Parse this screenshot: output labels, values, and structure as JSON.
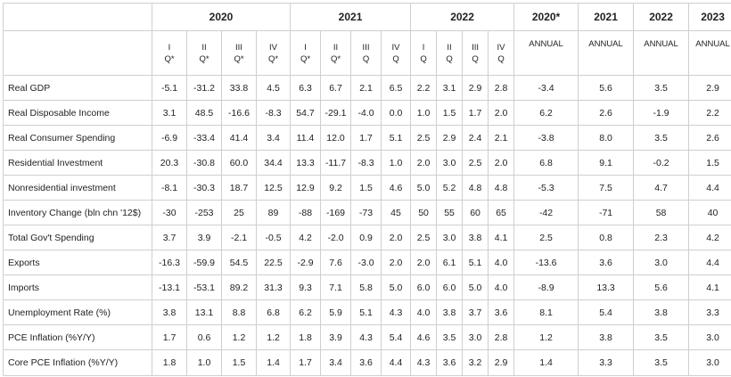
{
  "years": [
    "2020",
    "2021",
    "2022",
    "2020*",
    "2021",
    "2022",
    "2023"
  ],
  "year_spans": [
    4,
    4,
    4,
    1,
    1,
    1,
    1
  ],
  "quarter_headers": [
    {
      "roman": "I",
      "suffix": "Q*"
    },
    {
      "roman": "II",
      "suffix": "Q*"
    },
    {
      "roman": "III",
      "suffix": "Q*"
    },
    {
      "roman": "IV",
      "suffix": "Q*"
    },
    {
      "roman": "I",
      "suffix": "Q*"
    },
    {
      "roman": "II",
      "suffix": "Q*"
    },
    {
      "roman": "III",
      "suffix": "Q"
    },
    {
      "roman": "IV",
      "suffix": "Q"
    },
    {
      "roman": "I",
      "suffix": "Q"
    },
    {
      "roman": "II",
      "suffix": "Q"
    },
    {
      "roman": "III",
      "suffix": "Q"
    },
    {
      "roman": "IV",
      "suffix": "Q"
    }
  ],
  "annual_label": "ANNUAL",
  "rows": [
    {
      "label": "Real GDP",
      "values": [
        "-5.1",
        "-31.2",
        "33.8",
        "4.5",
        "6.3",
        "6.7",
        "2.1",
        "6.5",
        "2.2",
        "3.1",
        "2.9",
        "2.8",
        "-3.4",
        "5.6",
        "3.5",
        "2.9"
      ]
    },
    {
      "label": "Real Disposable Income",
      "values": [
        "3.1",
        "48.5",
        "-16.6",
        "-8.3",
        "54.7",
        "-29.1",
        "-4.0",
        "0.0",
        "1.0",
        "1.5",
        "1.7",
        "2.0",
        "6.2",
        "2.6",
        "-1.9",
        "2.2"
      ]
    },
    {
      "label": "Real Consumer Spending",
      "values": [
        "-6.9",
        "-33.4",
        "41.4",
        "3.4",
        "11.4",
        "12.0",
        "1.7",
        "5.1",
        "2.5",
        "2.9",
        "2.4",
        "2.1",
        "-3.8",
        "8.0",
        "3.5",
        "2.6"
      ]
    },
    {
      "label": "Residential Investment",
      "values": [
        "20.3",
        "-30.8",
        "60.0",
        "34.4",
        "13.3",
        "-11.7",
        "-8.3",
        "1.0",
        "2.0",
        "3.0",
        "2.5",
        "2.0",
        "6.8",
        "9.1",
        "-0.2",
        "1.5"
      ]
    },
    {
      "label": "Nonresidential investment",
      "values": [
        "-8.1",
        "-30.3",
        "18.7",
        "12.5",
        "12.9",
        "9.2",
        "1.5",
        "4.6",
        "5.0",
        "5.2",
        "4.8",
        "4.8",
        "-5.3",
        "7.5",
        "4.7",
        "4.4"
      ]
    },
    {
      "label": "Inventory Change (bln chn '12$)",
      "values": [
        "-30",
        "-253",
        "25",
        "89",
        "-88",
        "-169",
        "-73",
        "45",
        "50",
        "55",
        "60",
        "65",
        "-42",
        "-71",
        "58",
        "40"
      ]
    },
    {
      "label": "Total Gov't Spending",
      "values": [
        "3.7",
        "3.9",
        "-2.1",
        "-0.5",
        "4.2",
        "-2.0",
        "0.9",
        "2.0",
        "2.5",
        "3.0",
        "3.8",
        "4.1",
        "2.5",
        "0.8",
        "2.3",
        "4.2"
      ]
    },
    {
      "label": "Exports",
      "values": [
        "-16.3",
        "-59.9",
        "54.5",
        "22.5",
        "-2.9",
        "7.6",
        "-3.0",
        "2.0",
        "2.0",
        "6.1",
        "5.1",
        "4.0",
        "-13.6",
        "3.6",
        "3.0",
        "4.4"
      ]
    },
    {
      "label": "Imports",
      "values": [
        "-13.1",
        "-53.1",
        "89.2",
        "31.3",
        "9.3",
        "7.1",
        "5.8",
        "5.0",
        "6.0",
        "6.0",
        "5.0",
        "4.0",
        "-8.9",
        "13.3",
        "5.6",
        "4.1"
      ]
    },
    {
      "label": "Unemployment Rate (%)",
      "values": [
        "3.8",
        "13.1",
        "8.8",
        "6.8",
        "6.2",
        "5.9",
        "5.1",
        "4.3",
        "4.0",
        "3.8",
        "3.7",
        "3.6",
        "8.1",
        "5.4",
        "3.8",
        "3.3"
      ]
    },
    {
      "label": "PCE Inflation (%Y/Y)",
      "values": [
        "1.7",
        "0.6",
        "1.2",
        "1.2",
        "1.8",
        "3.9",
        "4.3",
        "5.4",
        "4.6",
        "3.5",
        "3.0",
        "2.8",
        "1.2",
        "3.8",
        "3.5",
        "3.0"
      ]
    },
    {
      "label": "Core PCE Inflation (%Y/Y)",
      "values": [
        "1.8",
        "1.0",
        "1.5",
        "1.4",
        "1.7",
        "3.4",
        "3.6",
        "4.4",
        "4.3",
        "3.6",
        "3.2",
        "2.9",
        "1.4",
        "3.3",
        "3.5",
        "3.0"
      ]
    }
  ]
}
